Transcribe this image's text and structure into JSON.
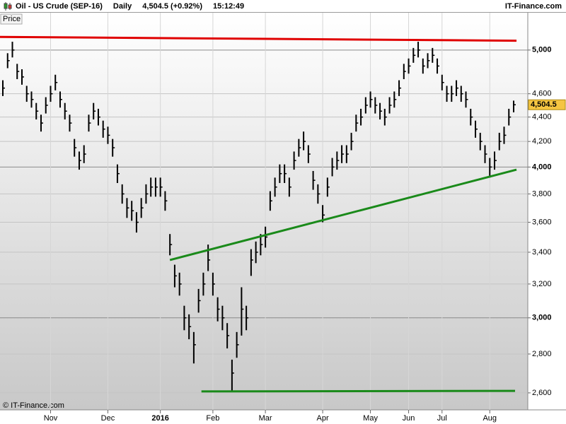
{
  "header": {
    "instrument": "Oil - US Crude (SEP-16)",
    "period": "Daily",
    "quote": "4,504.5 (+0.92%)",
    "time": "15:12:49",
    "brand": "IT-Finance.com"
  },
  "chart_data": {
    "type": "ohlc",
    "panel_label": "Price",
    "copyright": "© IT-Finance.com",
    "log_scale": true,
    "grid": true,
    "categories": [
      null,
      null,
      null,
      null,
      null,
      null,
      null,
      null,
      null,
      null,
      "Nov",
      null,
      null,
      null,
      null,
      null,
      null,
      null,
      null,
      null,
      null,
      null,
      "Dec",
      null,
      null,
      null,
      null,
      null,
      null,
      null,
      null,
      null,
      null,
      "2016",
      null,
      null,
      null,
      null,
      null,
      null,
      null,
      null,
      null,
      null,
      "Feb",
      null,
      null,
      null,
      null,
      null,
      null,
      null,
      null,
      null,
      null,
      "Mar",
      null,
      null,
      null,
      null,
      null,
      null,
      null,
      null,
      null,
      null,
      null,
      "Apr",
      null,
      null,
      null,
      null,
      null,
      null,
      null,
      null,
      null,
      "May",
      null,
      null,
      null,
      null,
      null,
      null,
      null,
      "Jun",
      null,
      null,
      null,
      null,
      null,
      null,
      "Jul",
      null,
      null,
      null,
      null,
      null,
      null,
      null,
      null,
      null,
      "Aug",
      null,
      null,
      null,
      null,
      null
    ],
    "close": [
      4650,
      4900,
      5000,
      4800,
      4750,
      4600,
      4550,
      4450,
      4350,
      4500,
      4600,
      4700,
      4550,
      4450,
      4350,
      4150,
      4050,
      4100,
      4350,
      4450,
      4400,
      4300,
      4250,
      4150,
      3950,
      3800,
      3700,
      3680,
      3600,
      3700,
      3800,
      3850,
      3850,
      3850,
      3750,
      3450,
      3250,
      3200,
      3000,
      2950,
      2850,
      3100,
      3200,
      3350,
      3200,
      3050,
      3000,
      2900,
      2700,
      2850,
      3050,
      3000,
      3350,
      3400,
      3450,
      3500,
      3750,
      3850,
      3950,
      3950,
      3850,
      4050,
      4150,
      4200,
      4100,
      3900,
      3800,
      3650,
      3850,
      4000,
      4050,
      4100,
      4100,
      4200,
      4350,
      4400,
      4500,
      4550,
      4500,
      4450,
      4400,
      4500,
      4550,
      4650,
      4800,
      4850,
      4950,
      5000,
      4850,
      4900,
      4950,
      4850,
      4700,
      4600,
      4600,
      4650,
      4600,
      4550,
      4400,
      4300,
      4200,
      4100,
      4000,
      4050,
      4200,
      4250,
      4400,
      4504.5
    ],
    "high": [
      4720,
      4970,
      5080,
      4870,
      4820,
      4670,
      4620,
      4520,
      4420,
      4570,
      4670,
      4770,
      4620,
      4520,
      4420,
      4220,
      4120,
      4170,
      4420,
      4520,
      4470,
      4370,
      4320,
      4220,
      4020,
      3870,
      3770,
      3750,
      3670,
      3770,
      3870,
      3920,
      3920,
      3920,
      3820,
      3520,
      3320,
      3270,
      3070,
      3020,
      2920,
      3170,
      3270,
      3450,
      3270,
      3120,
      3070,
      2970,
      2770,
      2920,
      3180,
      3070,
      3420,
      3470,
      3520,
      3570,
      3820,
      3920,
      4020,
      4020,
      3920,
      4120,
      4220,
      4280,
      4170,
      3970,
      3870,
      3720,
      3920,
      4070,
      4120,
      4170,
      4170,
      4270,
      4420,
      4470,
      4570,
      4620,
      4570,
      4520,
      4470,
      4570,
      4620,
      4720,
      4870,
      4920,
      5020,
      5080,
      4920,
      4970,
      5020,
      4920,
      4770,
      4670,
      4670,
      4720,
      4670,
      4620,
      4470,
      4370,
      4270,
      4170,
      4070,
      4120,
      4270,
      4320,
      4470,
      4540
    ],
    "low": [
      4580,
      4830,
      4930,
      4730,
      4680,
      4530,
      4480,
      4380,
      4280,
      4430,
      4530,
      4630,
      4480,
      4380,
      4280,
      4080,
      3980,
      4030,
      4280,
      4380,
      4330,
      4230,
      4180,
      4080,
      3880,
      3730,
      3630,
      3610,
      3530,
      3630,
      3730,
      3780,
      3780,
      3780,
      3680,
      3380,
      3180,
      3130,
      2930,
      2880,
      2750,
      3030,
      3130,
      3280,
      3130,
      2980,
      2930,
      2830,
      2610,
      2780,
      2900,
      2930,
      3250,
      3330,
      3380,
      3430,
      3680,
      3780,
      3880,
      3880,
      3780,
      3980,
      4080,
      4130,
      4030,
      3830,
      3730,
      3600,
      3780,
      3930,
      3980,
      4030,
      4030,
      4130,
      4280,
      4330,
      4430,
      4480,
      4430,
      4380,
      4330,
      4430,
      4480,
      4580,
      4730,
      4780,
      4880,
      4930,
      4780,
      4830,
      4880,
      4780,
      4630,
      4530,
      4530,
      4580,
      4530,
      4480,
      4330,
      4230,
      4130,
      4030,
      3920,
      3980,
      4130,
      4180,
      4330,
      4440
    ],
    "bar_color": "#000000",
    "ylim": [
      2517,
      5369
    ],
    "yticks": [
      {
        "value": 2600,
        "label": "2,600"
      },
      {
        "value": 2800,
        "label": "2,800"
      },
      {
        "value": 3000,
        "label": "3,000"
      },
      {
        "value": 3200,
        "label": "3,200"
      },
      {
        "value": 3400,
        "label": "3,400"
      },
      {
        "value": 3600,
        "label": "3,600"
      },
      {
        "value": 3800,
        "label": "3,800"
      },
      {
        "value": 4000,
        "label": "4,000"
      },
      {
        "value": 4200,
        "label": "4,200"
      },
      {
        "value": 4400,
        "label": "4,400"
      },
      {
        "value": 4600,
        "label": "4,600"
      },
      {
        "value": 5000,
        "label": "5,000"
      }
    ],
    "last_price": {
      "value": 4504.5,
      "label": "4,504.5"
    },
    "trendlines": [
      {
        "color": "#e00000",
        "x": [
          -0.6,
          107.6
        ],
        "y": [
          5127,
          5090
        ]
      },
      {
        "color": "#1a8a1a",
        "x": [
          35,
          107.6
        ],
        "y": [
          3350,
          3980
        ]
      },
      {
        "color": "#1a8a1a",
        "x": [
          41.6,
          107.3
        ],
        "y": [
          2607,
          2610
        ]
      }
    ]
  }
}
